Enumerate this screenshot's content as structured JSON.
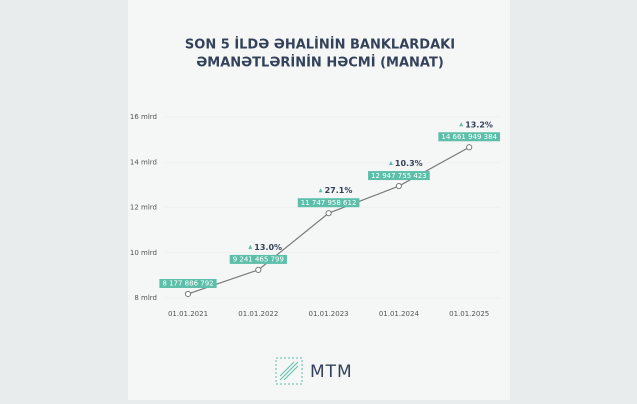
{
  "chart_data": {
    "type": "line",
    "title_lines": [
      "SON 5 İLDƏ ƏHALİNİN BANKLARDAKI",
      "ƏMANƏTLƏRİNİN HƏCMİ (MANAT)"
    ],
    "categories": [
      "01.01.2021",
      "01.01.2022",
      "01.01.2023",
      "01.01.2024",
      "01.01.2025"
    ],
    "values": [
      8177886792,
      9241465799,
      11747958612,
      12947755423,
      14661949384
    ],
    "value_labels": [
      "8 177 886 792",
      "9 241 465 799",
      "11 747 958 612",
      "12 947 755 423",
      "14 661 949 384"
    ],
    "growth_labels": [
      null,
      "13.0%",
      "27.1%",
      "10.3%",
      "13.2%"
    ],
    "color": "#7a7a7a",
    "label_color": "#5dbfaa",
    "ylim": [
      8000000000,
      16000000000
    ],
    "yticks": [
      {
        "value": 8000000000,
        "label": "8 mlrd"
      },
      {
        "value": 10000000000,
        "label": "10 mlrd"
      },
      {
        "value": 12000000000,
        "label": "12 mlrd"
      },
      {
        "value": 14000000000,
        "label": "14 mlrd"
      },
      {
        "value": 16000000000,
        "label": "16 mlrd"
      }
    ],
    "grid": true,
    "logo": "MTM"
  }
}
